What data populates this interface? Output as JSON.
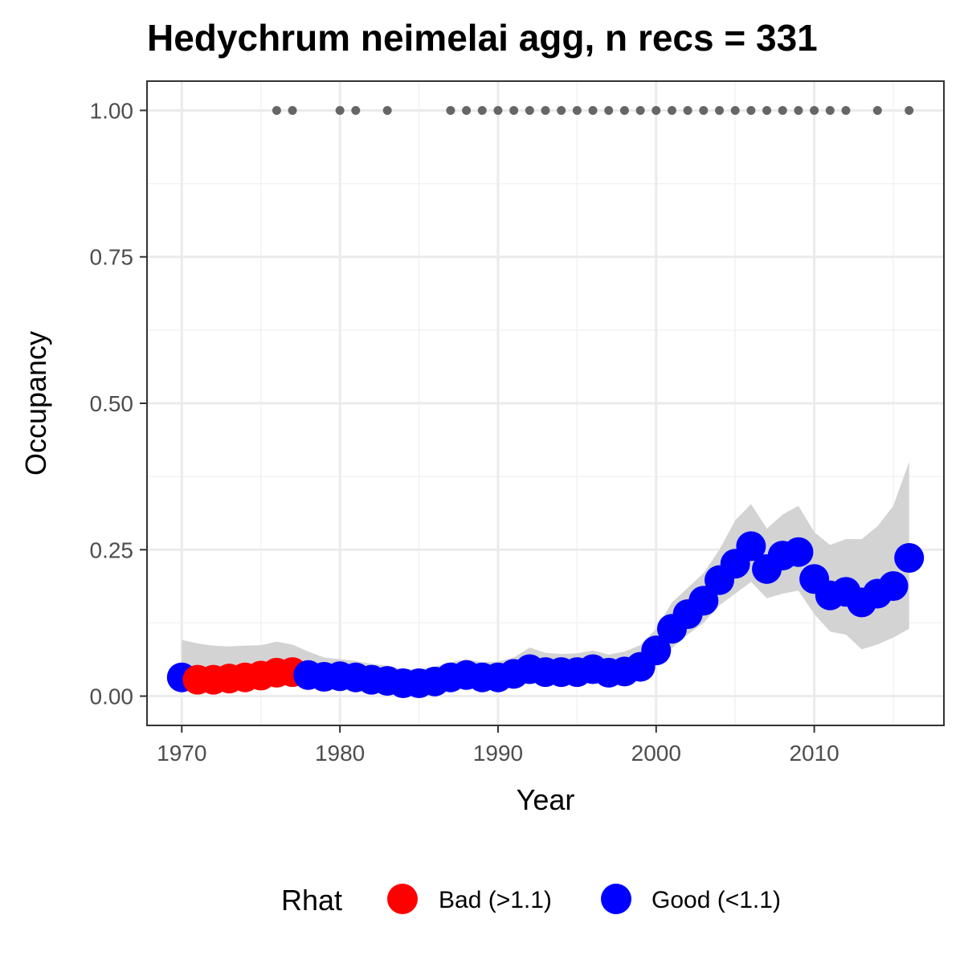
{
  "chart_data": {
    "type": "scatter",
    "title": "Hedychrum neimelai agg, n recs = 331",
    "xlabel": "Year",
    "ylabel": "Occupancy",
    "xlim": [
      1967.8,
      2018.2
    ],
    "ylim": [
      -0.05,
      1.05
    ],
    "x_ticks": [
      1970,
      1980,
      1990,
      2000,
      2010
    ],
    "y_ticks": [
      0,
      0.25,
      0.5,
      0.75,
      1.0
    ],
    "x_tick_labels": [
      "1970",
      "1980",
      "1990",
      "2000",
      "2010"
    ],
    "y_tick_labels": [
      "0.00",
      "0.25",
      "0.50",
      "0.75",
      "1.00"
    ],
    "grid": true,
    "legend": {
      "title": "Rhat",
      "position": "bottom",
      "entries": [
        {
          "label": "Bad (>1.1)",
          "color": "#ff0000"
        },
        {
          "label": "Good (<1.1)",
          "color": "#0000ff"
        }
      ]
    },
    "colors": {
      "bad": "#ff0000",
      "good": "#0000ff",
      "ribbon": "#d3d3d3",
      "record_points": "#666666"
    },
    "occupancy": [
      {
        "year": 1970,
        "mean": 0.032,
        "lower": 0.02,
        "upper": 0.096,
        "rhat": "good"
      },
      {
        "year": 1971,
        "mean": 0.028,
        "lower": 0.018,
        "upper": 0.09,
        "rhat": "bad"
      },
      {
        "year": 1972,
        "mean": 0.028,
        "lower": 0.018,
        "upper": 0.086,
        "rhat": "bad"
      },
      {
        "year": 1973,
        "mean": 0.03,
        "lower": 0.019,
        "upper": 0.085,
        "rhat": "bad"
      },
      {
        "year": 1974,
        "mean": 0.032,
        "lower": 0.02,
        "upper": 0.086,
        "rhat": "bad"
      },
      {
        "year": 1975,
        "mean": 0.035,
        "lower": 0.021,
        "upper": 0.087,
        "rhat": "bad"
      },
      {
        "year": 1976,
        "mean": 0.04,
        "lower": 0.024,
        "upper": 0.093,
        "rhat": "bad"
      },
      {
        "year": 1977,
        "mean": 0.041,
        "lower": 0.026,
        "upper": 0.088,
        "rhat": "bad"
      },
      {
        "year": 1978,
        "mean": 0.036,
        "lower": 0.022,
        "upper": 0.076,
        "rhat": "good"
      },
      {
        "year": 1979,
        "mean": 0.033,
        "lower": 0.02,
        "upper": 0.066,
        "rhat": "good"
      },
      {
        "year": 1980,
        "mean": 0.034,
        "lower": 0.021,
        "upper": 0.063,
        "rhat": "good"
      },
      {
        "year": 1981,
        "mean": 0.032,
        "lower": 0.02,
        "upper": 0.06,
        "rhat": "good"
      },
      {
        "year": 1982,
        "mean": 0.028,
        "lower": 0.016,
        "upper": 0.055,
        "rhat": "good"
      },
      {
        "year": 1983,
        "mean": 0.026,
        "lower": 0.015,
        "upper": 0.052,
        "rhat": "good"
      },
      {
        "year": 1984,
        "mean": 0.022,
        "lower": 0.012,
        "upper": 0.046,
        "rhat": "good"
      },
      {
        "year": 1985,
        "mean": 0.022,
        "lower": 0.012,
        "upper": 0.046,
        "rhat": "good"
      },
      {
        "year": 1986,
        "mean": 0.025,
        "lower": 0.014,
        "upper": 0.05,
        "rhat": "good"
      },
      {
        "year": 1987,
        "mean": 0.032,
        "lower": 0.019,
        "upper": 0.058,
        "rhat": "good"
      },
      {
        "year": 1988,
        "mean": 0.036,
        "lower": 0.022,
        "upper": 0.063,
        "rhat": "good"
      },
      {
        "year": 1989,
        "mean": 0.032,
        "lower": 0.019,
        "upper": 0.058,
        "rhat": "good"
      },
      {
        "year": 1990,
        "mean": 0.032,
        "lower": 0.019,
        "upper": 0.059,
        "rhat": "good"
      },
      {
        "year": 1991,
        "mean": 0.038,
        "lower": 0.023,
        "upper": 0.066,
        "rhat": "good"
      },
      {
        "year": 1992,
        "mean": 0.046,
        "lower": 0.029,
        "upper": 0.083,
        "rhat": "good"
      },
      {
        "year": 1993,
        "mean": 0.041,
        "lower": 0.026,
        "upper": 0.074,
        "rhat": "good"
      },
      {
        "year": 1994,
        "mean": 0.041,
        "lower": 0.026,
        "upper": 0.072,
        "rhat": "good"
      },
      {
        "year": 1995,
        "mean": 0.041,
        "lower": 0.026,
        "upper": 0.073,
        "rhat": "good"
      },
      {
        "year": 1996,
        "mean": 0.046,
        "lower": 0.029,
        "upper": 0.078,
        "rhat": "good"
      },
      {
        "year": 1997,
        "mean": 0.04,
        "lower": 0.025,
        "upper": 0.071,
        "rhat": "good"
      },
      {
        "year": 1998,
        "mean": 0.042,
        "lower": 0.026,
        "upper": 0.076,
        "rhat": "good"
      },
      {
        "year": 1999,
        "mean": 0.05,
        "lower": 0.032,
        "upper": 0.087,
        "rhat": "good"
      },
      {
        "year": 2000,
        "mean": 0.078,
        "lower": 0.052,
        "upper": 0.115,
        "rhat": "good"
      },
      {
        "year": 2001,
        "mean": 0.115,
        "lower": 0.082,
        "upper": 0.16,
        "rhat": "good"
      },
      {
        "year": 2002,
        "mean": 0.14,
        "lower": 0.105,
        "upper": 0.185,
        "rhat": "good"
      },
      {
        "year": 2003,
        "mean": 0.163,
        "lower": 0.125,
        "upper": 0.21,
        "rhat": "good"
      },
      {
        "year": 2004,
        "mean": 0.198,
        "lower": 0.155,
        "upper": 0.25,
        "rhat": "good"
      },
      {
        "year": 2005,
        "mean": 0.226,
        "lower": 0.175,
        "upper": 0.3,
        "rhat": "good"
      },
      {
        "year": 2006,
        "mean": 0.256,
        "lower": 0.195,
        "upper": 0.328,
        "rhat": "good"
      },
      {
        "year": 2007,
        "mean": 0.217,
        "lower": 0.167,
        "upper": 0.286,
        "rhat": "good"
      },
      {
        "year": 2008,
        "mean": 0.24,
        "lower": 0.175,
        "upper": 0.31,
        "rhat": "good"
      },
      {
        "year": 2009,
        "mean": 0.246,
        "lower": 0.18,
        "upper": 0.325,
        "rhat": "good"
      },
      {
        "year": 2010,
        "mean": 0.2,
        "lower": 0.14,
        "upper": 0.28,
        "rhat": "good"
      },
      {
        "year": 2011,
        "mean": 0.172,
        "lower": 0.11,
        "upper": 0.258,
        "rhat": "good"
      },
      {
        "year": 2012,
        "mean": 0.178,
        "lower": 0.105,
        "upper": 0.268,
        "rhat": "good"
      },
      {
        "year": 2013,
        "mean": 0.16,
        "lower": 0.08,
        "upper": 0.268,
        "rhat": "good"
      },
      {
        "year": 2014,
        "mean": 0.175,
        "lower": 0.088,
        "upper": 0.29,
        "rhat": "good"
      },
      {
        "year": 2015,
        "mean": 0.188,
        "lower": 0.1,
        "upper": 0.325,
        "rhat": "good"
      },
      {
        "year": 2016,
        "mean": 0.236,
        "lower": 0.115,
        "upper": 0.4,
        "rhat": "good"
      }
    ],
    "record_years": [
      1976,
      1977,
      1980,
      1981,
      1983,
      1987,
      1988,
      1989,
      1990,
      1991,
      1992,
      1993,
      1994,
      1995,
      1996,
      1997,
      1998,
      1999,
      2000,
      2001,
      2002,
      2003,
      2004,
      2005,
      2006,
      2007,
      2008,
      2009,
      2010,
      2011,
      2012,
      2014,
      2016
    ],
    "record_value": 1.0
  }
}
